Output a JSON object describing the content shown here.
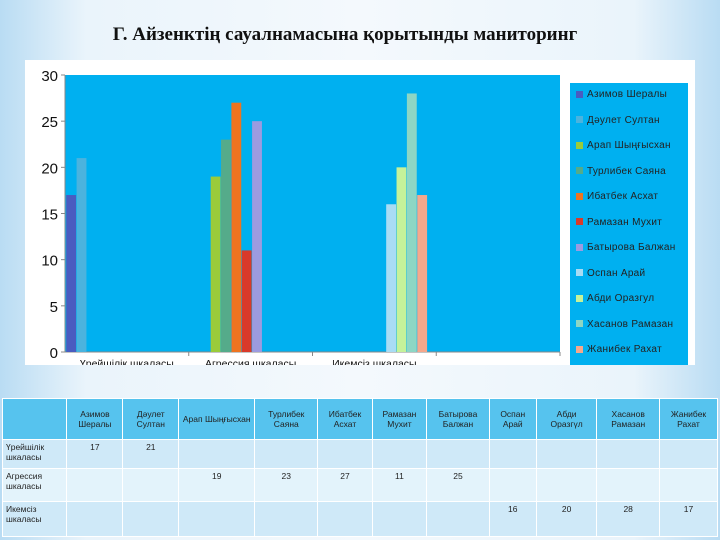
{
  "title": "Г. Айзенктің  сауалнамасына қорытынды маниторинг",
  "chart_data": {
    "type": "bar",
    "title": "Г. Айзенктің  сауалнамасына қорытынды маниторинг",
    "categories": [
      "Үрейшілік шкаласы",
      "Агрессия шкаласы",
      "Икемсіз шкаласы",
      ""
    ],
    "ylim": [
      0,
      30
    ],
    "yticks": [
      "0",
      "5",
      "10",
      "15",
      "20",
      "25",
      "30"
    ],
    "legend_position": "right",
    "series": [
      {
        "name": "Азимов Шералы",
        "color": "#4a5cc0",
        "values": [
          17,
          null,
          null,
          null
        ]
      },
      {
        "name": "Дәулет Султан",
        "color": "#4bb3de",
        "values": [
          21,
          null,
          null,
          null
        ]
      },
      {
        "name": "Арап  Шыңғысхан",
        "color": "#9acb3a",
        "values": [
          null,
          19,
          null,
          null
        ]
      },
      {
        "name": "Турлибек  Саяна",
        "color": "#55ab8a",
        "values": [
          null,
          23,
          null,
          null
        ]
      },
      {
        "name": "Ибатбек  Асхат",
        "color": "#ee7420",
        "values": [
          null,
          27,
          null,
          null
        ]
      },
      {
        "name": "Рамазан  Мухит",
        "color": "#d93a2a",
        "values": [
          null,
          11,
          null,
          null
        ]
      },
      {
        "name": "Батырова Балжан",
        "color": "#9c9be0",
        "values": [
          null,
          25,
          null,
          null
        ]
      },
      {
        "name": "Оспан  Арай",
        "color": "#a9dcf4",
        "values": [
          null,
          null,
          16,
          null
        ]
      },
      {
        "name": "Абди Оразгул",
        "color": "#c5f29a",
        "values": [
          null,
          null,
          20,
          null
        ]
      },
      {
        "name": "Хасанов  Рамазан",
        "color": "#8ed6c4",
        "values": [
          null,
          null,
          28,
          null
        ]
      },
      {
        "name": "Жанибек  Рахат",
        "color": "#f6a88c",
        "values": [
          null,
          null,
          17,
          null
        ]
      }
    ]
  },
  "table": {
    "headers": [
      "",
      "Азимов Шералы",
      "Дәулет Султан",
      "Арап Шыңғысхан",
      "Турлибек Саяна",
      "Ибатбек Асхат",
      "Рамазан Мухит",
      "Батырова Балжан",
      "Оспан Арай",
      "Абди Оразгүл",
      "Хасанов Рамазан",
      "Жанибек Рахат"
    ],
    "rows": [
      [
        "Үрейшілік шкаласы",
        "17",
        "21",
        "",
        "",
        "",
        "",
        "",
        "",
        "",
        "",
        ""
      ],
      [
        "Агрессия шкаласы",
        "",
        "",
        "19",
        "23",
        "27",
        "11",
        "25",
        "",
        "",
        "",
        ""
      ],
      [
        "Икемсіз шкаласы",
        "",
        "",
        "",
        "",
        "",
        "",
        "",
        "16",
        "20",
        "28",
        "17"
      ]
    ]
  }
}
